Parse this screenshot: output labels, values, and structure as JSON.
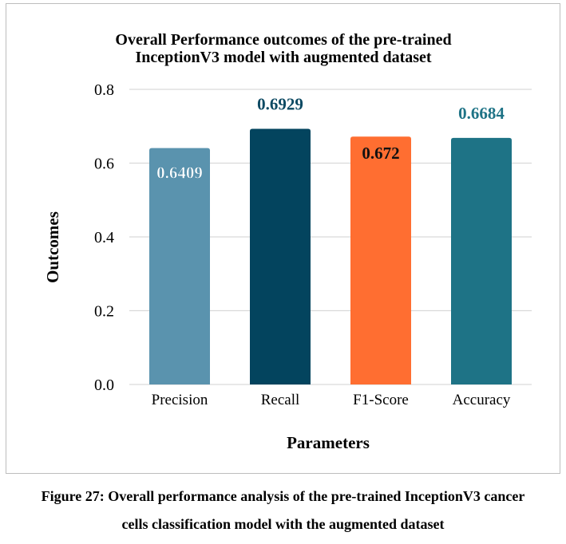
{
  "chart_data": {
    "type": "bar",
    "title": [
      "Overall Performance outcomes of the pre-trained",
      "InceptionV3 model with augmented dataset"
    ],
    "xlabel": "Parameters",
    "ylabel": "Outcomes",
    "categories": [
      "Precision",
      "Recall",
      "F1-Score",
      "Accuracy"
    ],
    "values": [
      0.6409,
      0.6929,
      0.672,
      0.6684
    ],
    "value_labels": [
      "0.6409",
      "0.6929",
      "0.672",
      "0.6684"
    ],
    "bar_colors": [
      "#5a93ae",
      "#03445e",
      "#ff6e31",
      "#1e7386"
    ],
    "label_colors": [
      "#ffffff",
      "#0d4a63",
      "#111111",
      "#1e7386"
    ],
    "ylim": [
      0,
      0.8
    ],
    "yticks": [
      0.0,
      0.2,
      0.4,
      0.6,
      0.8
    ],
    "ytick_labels": [
      "0.0",
      "0.2",
      "0.4",
      "0.6",
      "0.8"
    ],
    "grid": true,
    "legend": "none"
  },
  "caption": {
    "line1": "Figure 27: Overall performance analysis of the pre-trained InceptionV3 cancer",
    "line2": "cells classification model with the augmented dataset"
  }
}
